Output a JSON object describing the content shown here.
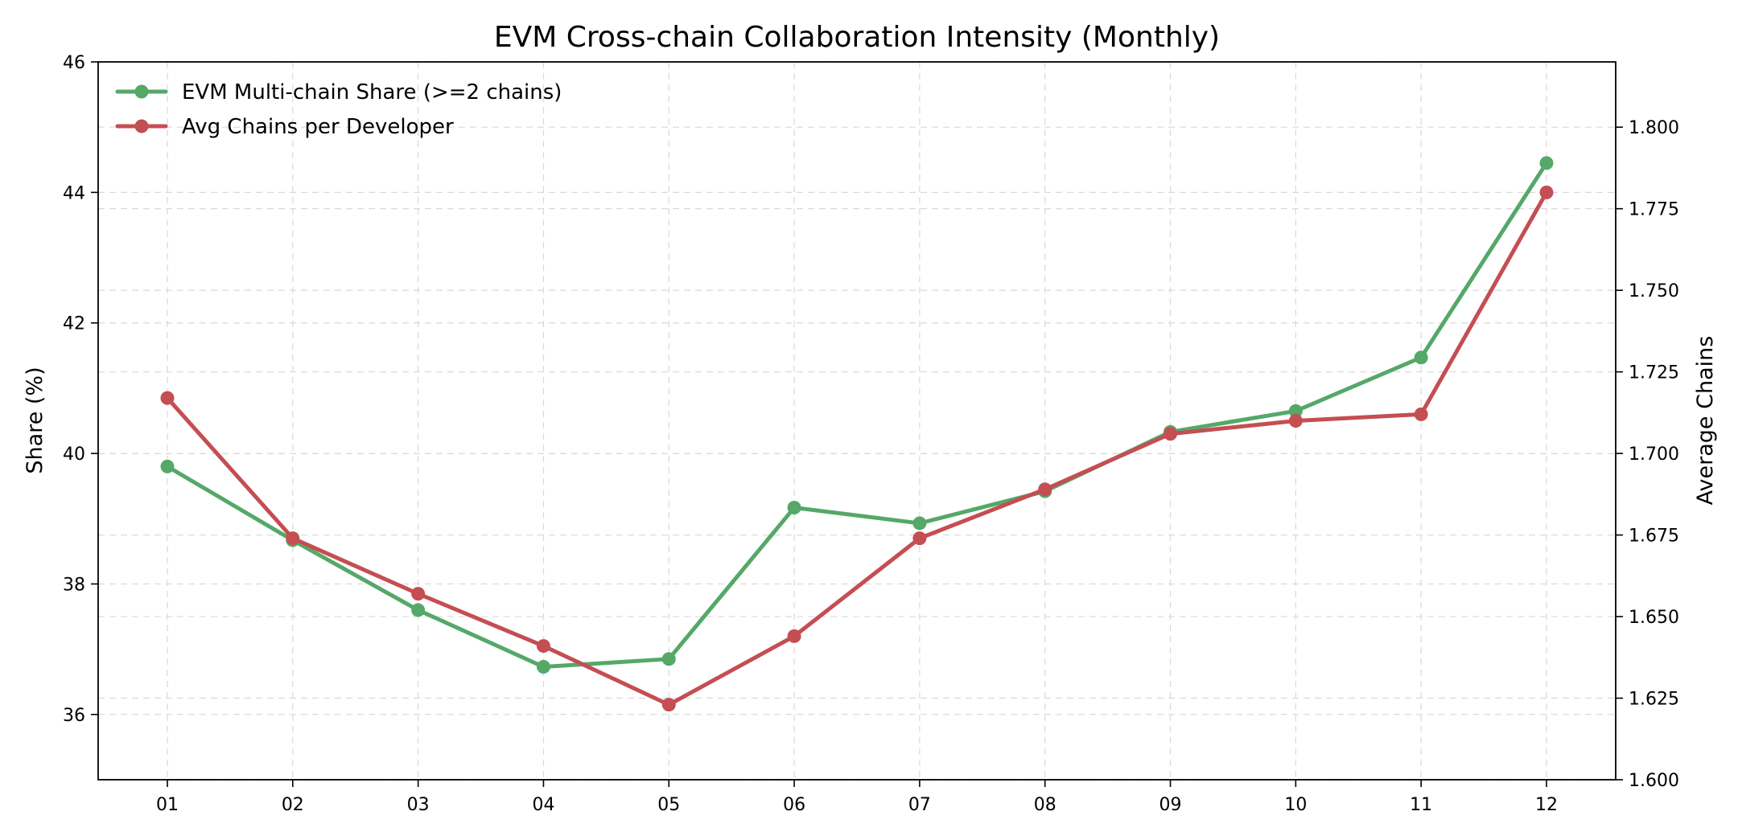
{
  "chart_data": {
    "type": "line",
    "title": "EVM Cross-chain Collaboration Intensity (Monthly)",
    "categories": [
      "01",
      "02",
      "03",
      "04",
      "05",
      "06",
      "07",
      "08",
      "09",
      "10",
      "11",
      "12"
    ],
    "y_left": {
      "label": "Share (%)",
      "range": [
        35,
        46
      ],
      "ticks": [
        36,
        38,
        40,
        42,
        44,
        46
      ],
      "tick_labels": [
        "36",
        "38",
        "40",
        "42",
        "44",
        "46"
      ]
    },
    "y_right": {
      "label": "Average Chains",
      "range": [
        1.6,
        1.82
      ],
      "ticks": [
        1.6,
        1.625,
        1.65,
        1.675,
        1.7,
        1.725,
        1.75,
        1.775,
        1.8
      ],
      "tick_labels": [
        "1.600",
        "1.625",
        "1.650",
        "1.675",
        "1.700",
        "1.725",
        "1.750",
        "1.775",
        "1.800"
      ]
    },
    "grid": true,
    "legend_position": "top-left",
    "series": [
      {
        "name": "EVM Multi-chain Share (>=2 chains)",
        "axis": "left",
        "color": "#55a868",
        "values": [
          39.8,
          38.67,
          37.6,
          36.73,
          36.85,
          39.17,
          38.93,
          39.42,
          40.33,
          40.65,
          41.47,
          44.45
        ]
      },
      {
        "name": "Avg Chains per Developer",
        "axis": "right",
        "color": "#c44e52",
        "values": [
          1.717,
          1.674,
          1.657,
          1.641,
          1.623,
          1.644,
          1.674,
          1.689,
          1.706,
          1.71,
          1.712,
          1.78
        ]
      }
    ]
  }
}
